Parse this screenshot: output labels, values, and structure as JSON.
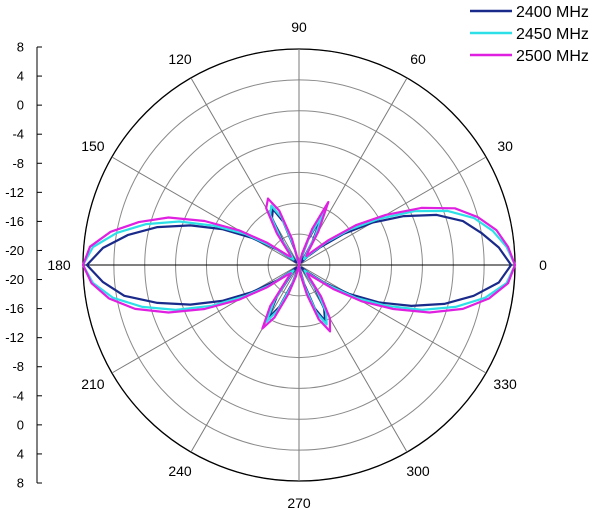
{
  "chart_data": {
    "type": "polar",
    "radial_axis": {
      "range": [
        -20,
        8
      ],
      "ticks": [
        "8",
        "4",
        "0",
        "-4",
        "-8",
        "-12",
        "-16",
        "-20",
        "-20",
        "-16",
        "-12",
        "-8",
        "-4",
        "0",
        "4",
        "8"
      ],
      "grid": true
    },
    "angular_axis": {
      "unit": "degrees",
      "ticks": [
        "0",
        "30",
        "60",
        "90",
        "120",
        "150",
        "180",
        "210",
        "240",
        "270",
        "300",
        "330"
      ],
      "grid": true
    },
    "legend_position": "top-right",
    "series": [
      {
        "name": "2400 MHz",
        "color": "#1a2a8a",
        "points": [
          [
            0,
            7.5
          ],
          [
            5,
            6.0
          ],
          [
            10,
            4.0
          ],
          [
            15,
            2.0
          ],
          [
            20,
            -1.0
          ],
          [
            25,
            -5.0
          ],
          [
            30,
            -9.0
          ],
          [
            35,
            -13.0
          ],
          [
            40,
            -16.5
          ],
          [
            45,
            -18.5
          ],
          [
            50,
            -19.5
          ],
          [
            55,
            -19.0
          ],
          [
            60,
            -16.5
          ],
          [
            65,
            -13.0
          ],
          [
            70,
            -16.5
          ],
          [
            75,
            -19.5
          ],
          [
            80,
            -20.0
          ],
          [
            85,
            -20.0
          ],
          [
            90,
            -20.0
          ],
          [
            95,
            -20.0
          ],
          [
            100,
            -20.0
          ],
          [
            105,
            -18.0
          ],
          [
            110,
            -14.0
          ],
          [
            115,
            -12.0
          ],
          [
            120,
            -13.0
          ],
          [
            125,
            -16.5
          ],
          [
            130,
            -19.0
          ],
          [
            135,
            -19.5
          ],
          [
            140,
            -19.0
          ],
          [
            145,
            -16.5
          ],
          [
            150,
            -13.0
          ],
          [
            155,
            -9.0
          ],
          [
            160,
            -5.0
          ],
          [
            165,
            -1.0
          ],
          [
            170,
            2.5
          ],
          [
            175,
            5.5
          ],
          [
            180,
            7.5
          ],
          [
            185,
            5.5
          ],
          [
            190,
            3.0
          ],
          [
            195,
            -1.0
          ],
          [
            200,
            -5.0
          ],
          [
            205,
            -9.0
          ],
          [
            210,
            -13.0
          ],
          [
            215,
            -16.5
          ],
          [
            220,
            -19.0
          ],
          [
            225,
            -19.5
          ],
          [
            230,
            -18.5
          ],
          [
            235,
            -15.0
          ],
          [
            240,
            -12.0
          ],
          [
            245,
            -14.0
          ],
          [
            250,
            -17.5
          ],
          [
            255,
            -19.5
          ],
          [
            260,
            -20.0
          ],
          [
            265,
            -20.0
          ],
          [
            270,
            -20.0
          ],
          [
            275,
            -20.0
          ],
          [
            280,
            -19.5
          ],
          [
            285,
            -17.5
          ],
          [
            290,
            -14.0
          ],
          [
            295,
            -12.0
          ],
          [
            300,
            -13.5
          ],
          [
            305,
            -16.5
          ],
          [
            310,
            -19.0
          ],
          [
            315,
            -19.5
          ],
          [
            320,
            -18.5
          ],
          [
            325,
            -16.0
          ],
          [
            330,
            -12.5
          ],
          [
            335,
            -8.5
          ],
          [
            340,
            -4.5
          ],
          [
            345,
            -0.5
          ],
          [
            350,
            3.0
          ],
          [
            355,
            6.0
          ],
          [
            360,
            7.5
          ]
        ]
      },
      {
        "name": "2450 MHz",
        "color": "#2de0e8",
        "points": [
          [
            0,
            8.0
          ],
          [
            5,
            7.0
          ],
          [
            10,
            5.5
          ],
          [
            15,
            3.5
          ],
          [
            20,
            0.5
          ],
          [
            25,
            -3.5
          ],
          [
            30,
            -8.0
          ],
          [
            35,
            -12.0
          ],
          [
            40,
            -15.5
          ],
          [
            45,
            -18.0
          ],
          [
            50,
            -19.0
          ],
          [
            55,
            -18.5
          ],
          [
            60,
            -16.0
          ],
          [
            65,
            -12.5
          ],
          [
            70,
            -16.0
          ],
          [
            75,
            -19.0
          ],
          [
            80,
            -20.0
          ],
          [
            85,
            -20.0
          ],
          [
            90,
            -20.0
          ],
          [
            95,
            -20.0
          ],
          [
            100,
            -20.0
          ],
          [
            105,
            -17.5
          ],
          [
            110,
            -13.5
          ],
          [
            115,
            -11.5
          ],
          [
            120,
            -12.5
          ],
          [
            125,
            -16.0
          ],
          [
            130,
            -18.5
          ],
          [
            135,
            -19.0
          ],
          [
            140,
            -18.5
          ],
          [
            145,
            -16.0
          ],
          [
            150,
            -12.0
          ],
          [
            155,
            -8.0
          ],
          [
            160,
            -3.5
          ],
          [
            165,
            0.5
          ],
          [
            170,
            4.0
          ],
          [
            175,
            6.8
          ],
          [
            180,
            8.0
          ],
          [
            185,
            6.8
          ],
          [
            190,
            4.5
          ],
          [
            195,
            1.0
          ],
          [
            200,
            -3.0
          ],
          [
            205,
            -7.5
          ],
          [
            210,
            -12.0
          ],
          [
            215,
            -15.5
          ],
          [
            220,
            -18.5
          ],
          [
            225,
            -19.0
          ],
          [
            230,
            -18.0
          ],
          [
            235,
            -14.5
          ],
          [
            240,
            -11.5
          ],
          [
            245,
            -13.5
          ],
          [
            250,
            -17.0
          ],
          [
            255,
            -19.0
          ],
          [
            260,
            -20.0
          ],
          [
            265,
            -20.0
          ],
          [
            270,
            -20.0
          ],
          [
            275,
            -20.0
          ],
          [
            280,
            -19.0
          ],
          [
            285,
            -17.0
          ],
          [
            290,
            -13.5
          ],
          [
            295,
            -11.5
          ],
          [
            300,
            -13.0
          ],
          [
            305,
            -16.0
          ],
          [
            310,
            -18.5
          ],
          [
            315,
            -19.0
          ],
          [
            320,
            -18.0
          ],
          [
            325,
            -15.5
          ],
          [
            330,
            -11.5
          ],
          [
            335,
            -7.5
          ],
          [
            340,
            -3.0
          ],
          [
            345,
            1.0
          ],
          [
            350,
            4.5
          ],
          [
            355,
            7.0
          ],
          [
            360,
            8.0
          ]
        ]
      },
      {
        "name": "2500 MHz",
        "color": "#e020e0",
        "points": [
          [
            0,
            8.0
          ],
          [
            5,
            7.2
          ],
          [
            10,
            6.0
          ],
          [
            15,
            4.0
          ],
          [
            20,
            1.5
          ],
          [
            25,
            -2.5
          ],
          [
            30,
            -7.0
          ],
          [
            35,
            -11.0
          ],
          [
            40,
            -15.0
          ],
          [
            45,
            -17.5
          ],
          [
            50,
            -18.5
          ],
          [
            55,
            -18.0
          ],
          [
            60,
            -15.0
          ],
          [
            65,
            -11.0
          ],
          [
            70,
            -15.0
          ],
          [
            75,
            -18.5
          ],
          [
            80,
            -20.0
          ],
          [
            85,
            -20.0
          ],
          [
            90,
            -20.0
          ],
          [
            95,
            -20.0
          ],
          [
            100,
            -19.5
          ],
          [
            105,
            -16.5
          ],
          [
            110,
            -12.5
          ],
          [
            115,
            -10.5
          ],
          [
            120,
            -11.5
          ],
          [
            125,
            -15.0
          ],
          [
            130,
            -18.0
          ],
          [
            135,
            -18.5
          ],
          [
            140,
            -18.0
          ],
          [
            145,
            -15.0
          ],
          [
            150,
            -11.0
          ],
          [
            155,
            -6.5
          ],
          [
            160,
            -2.0
          ],
          [
            165,
            1.5
          ],
          [
            170,
            4.8
          ],
          [
            175,
            7.2
          ],
          [
            180,
            8.0
          ],
          [
            185,
            7.0
          ],
          [
            190,
            5.0
          ],
          [
            195,
            2.0
          ],
          [
            200,
            -2.0
          ],
          [
            205,
            -6.5
          ],
          [
            210,
            -11.0
          ],
          [
            215,
            -15.0
          ],
          [
            220,
            -18.0
          ],
          [
            225,
            -18.5
          ],
          [
            230,
            -17.5
          ],
          [
            235,
            -13.5
          ],
          [
            240,
            -10.5
          ],
          [
            245,
            -12.5
          ],
          [
            250,
            -16.0
          ],
          [
            255,
            -18.5
          ],
          [
            260,
            -20.0
          ],
          [
            265,
            -20.0
          ],
          [
            270,
            -20.0
          ],
          [
            275,
            -19.5
          ],
          [
            280,
            -18.5
          ],
          [
            285,
            -16.0
          ],
          [
            290,
            -12.5
          ],
          [
            295,
            -10.5
          ],
          [
            300,
            -12.0
          ],
          [
            305,
            -15.0
          ],
          [
            310,
            -18.0
          ],
          [
            315,
            -18.5
          ],
          [
            320,
            -17.5
          ],
          [
            325,
            -14.5
          ],
          [
            330,
            -10.5
          ],
          [
            335,
            -6.5
          ],
          [
            340,
            -2.0
          ],
          [
            345,
            2.0
          ],
          [
            350,
            5.0
          ],
          [
            355,
            7.2
          ],
          [
            360,
            8.0
          ]
        ]
      }
    ]
  }
}
